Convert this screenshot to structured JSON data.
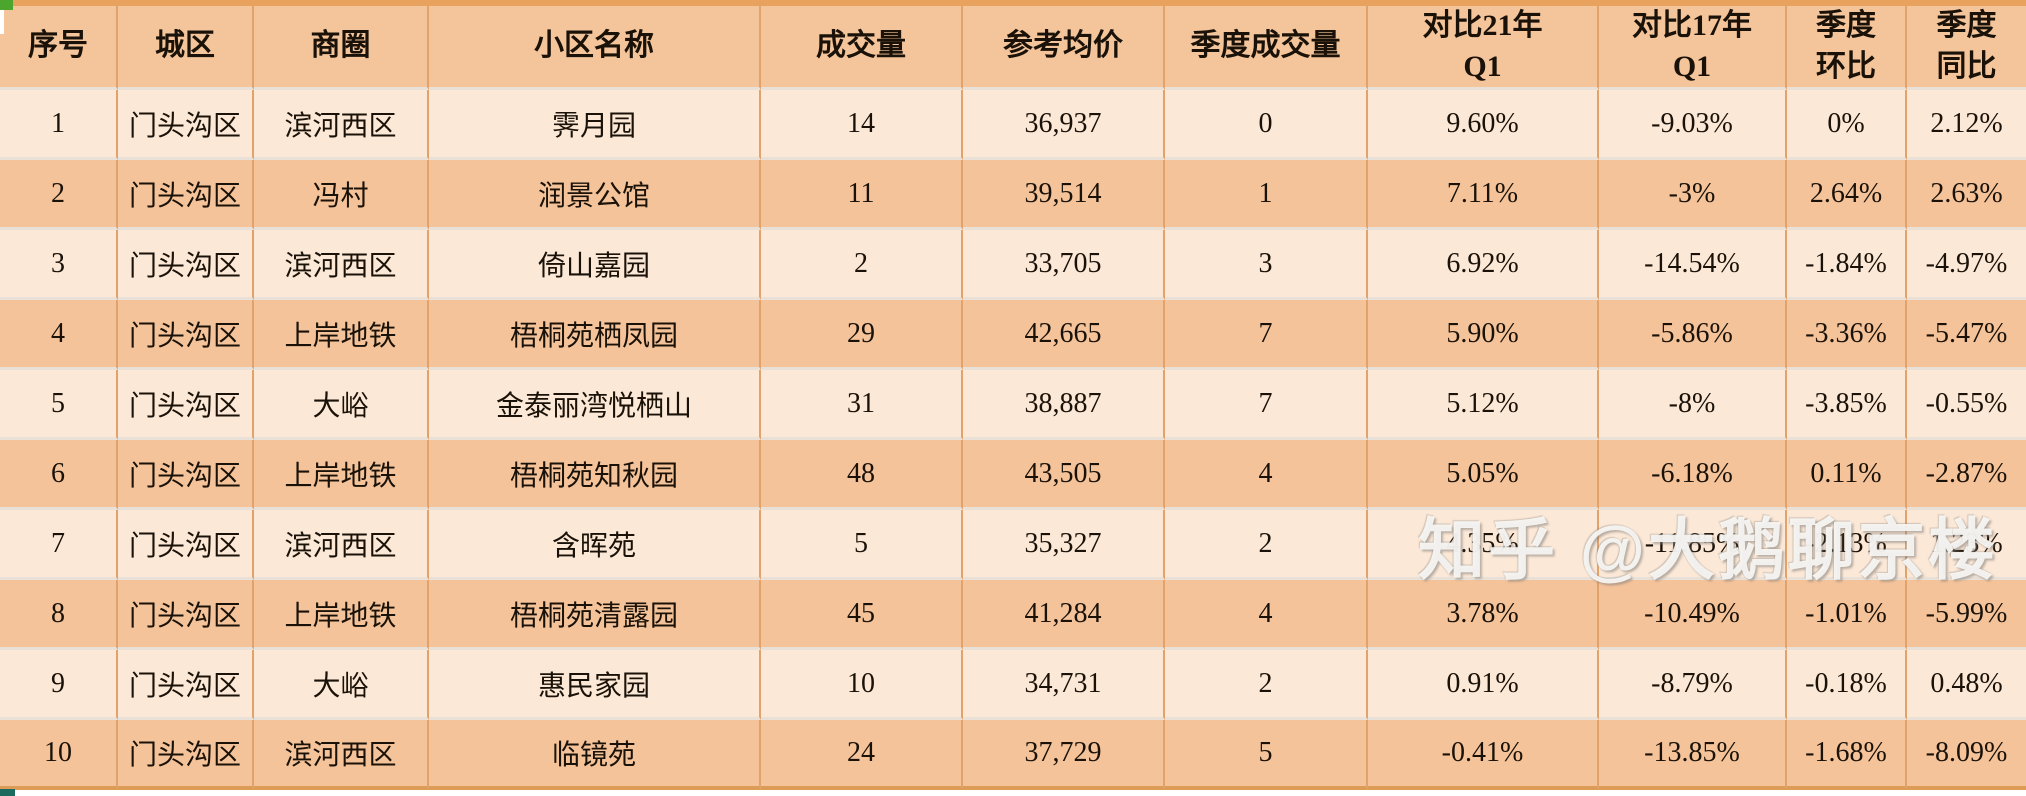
{
  "watermark": {
    "text": "知乎 @大鹅聊京楼"
  },
  "colors": {
    "header_bg": "#f4c49b",
    "row_dark": "#f5c39a",
    "row_light": "#fce8d7",
    "vertical_gridline": "#e2a26c",
    "horizontal_gridline": "#e9e1d7",
    "top_edge_strip": "#e9a25d",
    "bottom_edge": "#dc9c58",
    "top_left_accent_green": "#4ca62e",
    "bottom_left_accent_teal": "#1c6a5d",
    "text": "#1a1208"
  },
  "chart_data": {
    "type": "table",
    "columns": [
      "序号",
      "城区",
      "商圈",
      "小区名称",
      "成交量",
      "参考均价",
      "季度成交量",
      "对比21年\nQ1",
      "对比17年\nQ1",
      "季度\n环比",
      "季度\n同比"
    ],
    "rows": [
      [
        "1",
        "门头沟区",
        "滨河西区",
        "霁月园",
        "14",
        "36,937",
        "0",
        "9.60%",
        "-9.03%",
        "0%",
        "2.12%"
      ],
      [
        "2",
        "门头沟区",
        "冯村",
        "润景公馆",
        "11",
        "39,514",
        "1",
        "7.11%",
        "-3%",
        "2.64%",
        "2.63%"
      ],
      [
        "3",
        "门头沟区",
        "滨河西区",
        "倚山嘉园",
        "2",
        "33,705",
        "3",
        "6.92%",
        "-14.54%",
        "-1.84%",
        "-4.97%"
      ],
      [
        "4",
        "门头沟区",
        "上岸地铁",
        "梧桐苑栖凤园",
        "29",
        "42,665",
        "7",
        "5.90%",
        "-5.86%",
        "-3.36%",
        "-5.47%"
      ],
      [
        "5",
        "门头沟区",
        "大峪",
        "金泰丽湾悦栖山",
        "31",
        "38,887",
        "7",
        "5.12%",
        "-8%",
        "-3.85%",
        "-0.55%"
      ],
      [
        "6",
        "门头沟区",
        "上岸地铁",
        "梧桐苑知秋园",
        "48",
        "43,505",
        "4",
        "5.05%",
        "-6.18%",
        "0.11%",
        "-2.87%"
      ],
      [
        "7",
        "门头沟区",
        "滨河西区",
        "含晖苑",
        "5",
        "35,327",
        "2",
        "4.35%",
        "-11.85%",
        "-2.13%",
        "1.23%"
      ],
      [
        "8",
        "门头沟区",
        "上岸地铁",
        "梧桐苑清露园",
        "45",
        "41,284",
        "4",
        "3.78%",
        "-10.49%",
        "-1.01%",
        "-5.99%"
      ],
      [
        "9",
        "门头沟区",
        "大峪",
        "惠民家园",
        "10",
        "34,731",
        "2",
        "0.91%",
        "-8.79%",
        "-0.18%",
        "0.48%"
      ],
      [
        "10",
        "门头沟区",
        "滨河西区",
        "临镜苑",
        "24",
        "37,729",
        "5",
        "-0.41%",
        "-13.85%",
        "-1.68%",
        "-8.09%"
      ]
    ],
    "title": "",
    "layout_hints": {
      "grid": true,
      "zebra_striping": true,
      "all_cells_centered": true
    }
  }
}
